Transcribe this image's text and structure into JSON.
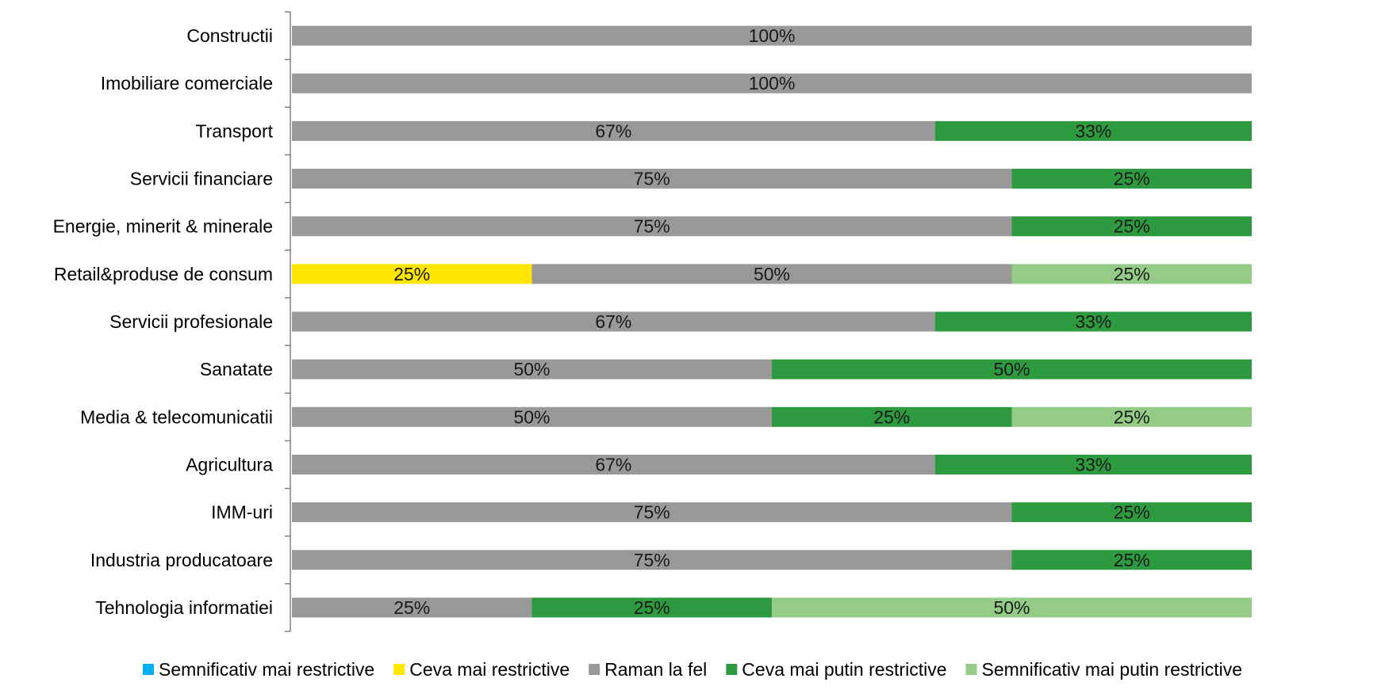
{
  "chart_data": {
    "type": "bar",
    "orientation": "horizontal",
    "stacked": "percent",
    "grid": false,
    "legend_position": "bottom",
    "categories": [
      "Constructii",
      "Imobiliare comerciale",
      "Transport",
      "Servicii financiare",
      "Energie, minerit & minerale",
      "Retail&produse de consum",
      "Servicii profesionale",
      "Sanatate",
      "Media & telecomunicatii",
      "Agricultura ",
      "IMM-uri",
      "Industria producatoare",
      "Tehnologia informatiei"
    ],
    "series": [
      {
        "name": "Semnificativ mai restrictive",
        "color": "#00b0f0",
        "values": [
          0,
          0,
          0,
          0,
          0,
          0,
          0,
          0,
          0,
          0,
          0,
          0,
          0
        ],
        "labels": [
          "",
          "",
          "",
          "",
          "",
          "",
          "",
          "",
          "",
          "",
          "",
          "",
          ""
        ]
      },
      {
        "name": "Ceva mai restrictive",
        "color": "#ffe600",
        "values": [
          0,
          0,
          0,
          0,
          0,
          25,
          0,
          0,
          0,
          0,
          0,
          0,
          0
        ],
        "labels": [
          "",
          "",
          "",
          "",
          "",
          "25%",
          "",
          "",
          "",
          "",
          "",
          "",
          ""
        ]
      },
      {
        "name": "Raman la fel",
        "color": "#999999",
        "values": [
          100,
          100,
          67,
          75,
          75,
          50,
          67,
          50,
          50,
          67,
          75,
          75,
          25
        ],
        "labels": [
          "100%",
          "100%",
          "67%",
          "75%",
          "75%",
          "50%",
          "67%",
          "50%",
          "50%",
          "67%",
          "75%",
          "75%",
          "25%"
        ]
      },
      {
        "name": "Ceva mai putin restrictive",
        "color": "#2e9a40",
        "values": [
          0,
          0,
          33,
          25,
          25,
          0,
          33,
          50,
          25,
          33,
          25,
          25,
          25
        ],
        "labels": [
          "",
          "",
          "33%",
          "25%",
          "25%",
          "",
          "33%",
          "50%",
          "25%",
          "33%",
          "25%",
          "25%",
          "25%"
        ]
      },
      {
        "name": "Semnificativ mai putin restrictive",
        "color": "#94cc87",
        "values": [
          0,
          0,
          0,
          0,
          0,
          25,
          0,
          0,
          25,
          0,
          0,
          0,
          50
        ],
        "labels": [
          "",
          "",
          "",
          "",
          "",
          "25%",
          "",
          "",
          "25%",
          "",
          "",
          "",
          "50%"
        ]
      }
    ]
  }
}
